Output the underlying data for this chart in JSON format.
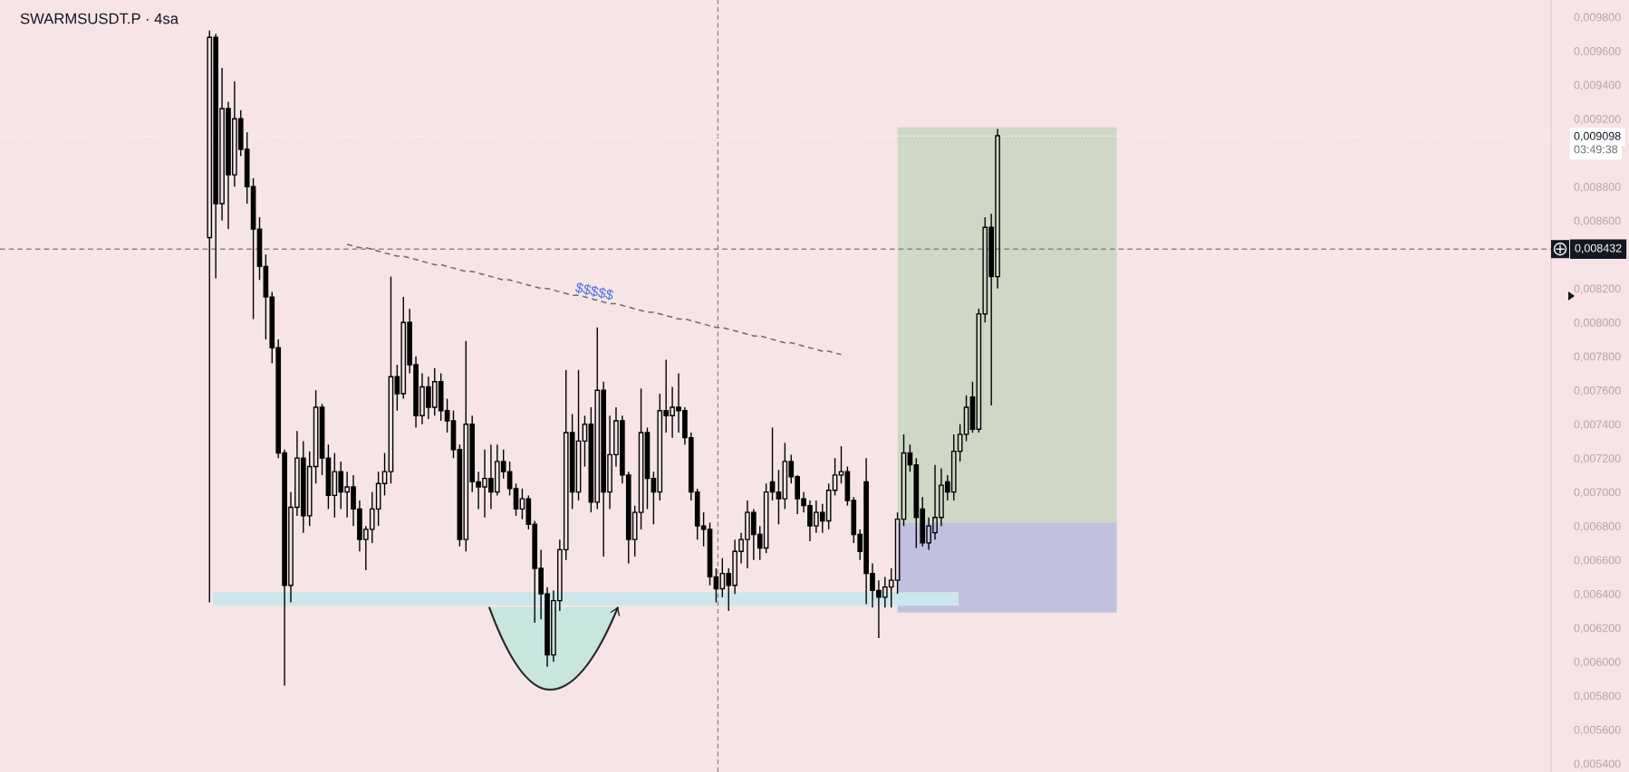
{
  "chart_data": {
    "type": "candlestick",
    "title": "SWARMSUSDT.P · 4sa",
    "categories": [
      null,
      null,
      null,
      null,
      null,
      null,
      null,
      null,
      null,
      null,
      null,
      null,
      null,
      null,
      null,
      null,
      null,
      null,
      null,
      null,
      null,
      null,
      null,
      null,
      null,
      null,
      null,
      null,
      null,
      null,
      null,
      null,
      null,
      null,
      null,
      null,
      null,
      null,
      null,
      null,
      null,
      null,
      null,
      null,
      null,
      null,
      null,
      null,
      null,
      null,
      null,
      null,
      null,
      null,
      null,
      null,
      null,
      null,
      null,
      null,
      null,
      null,
      null,
      null,
      null,
      null,
      null,
      null,
      null,
      null,
      null,
      null,
      null,
      null,
      null,
      null,
      null,
      null,
      null,
      null,
      null,
      null,
      null,
      null,
      null,
      null,
      null,
      null,
      null,
      null,
      null,
      null,
      null,
      null,
      null,
      null,
      null,
      null,
      null,
      null,
      null,
      null,
      null,
      null,
      null,
      null,
      null,
      null,
      null,
      null,
      null,
      null,
      null,
      null,
      null,
      null,
      null,
      null,
      null,
      null,
      null,
      null,
      null,
      null,
      null,
      null,
      null,
      null,
      null,
      null,
      null,
      null,
      null,
      null,
      null,
      null,
      null,
      null,
      null,
      null,
      null,
      null,
      null,
      null,
      null,
      null,
      null,
      null,
      null,
      null,
      null,
      null,
      null,
      null,
      null,
      null,
      null,
      null,
      null,
      null,
      null,
      null,
      null,
      null,
      null,
      null,
      null,
      null,
      null,
      null,
      null,
      null,
      null,
      null,
      null,
      null,
      null,
      null,
      null,
      null,
      null,
      null,
      null,
      null,
      null,
      null,
      null,
      null,
      null,
      null,
      null,
      null,
      null,
      null,
      null,
      null,
      null,
      null,
      null,
      null,
      null,
      null,
      null,
      null,
      null,
      null,
      null,
      null,
      null,
      null,
      null,
      null,
      null,
      null,
      null,
      null,
      null,
      null,
      null,
      null,
      null,
      null,
      null,
      null,
      null,
      null,
      null,
      null,
      null,
      null,
      null,
      null,
      null,
      null,
      null,
      null,
      null,
      null,
      null,
      null,
      null,
      null,
      null,
      null,
      null,
      null,
      null,
      null
    ],
    "ohlc": [
      null,
      null,
      null,
      null,
      null,
      null,
      null,
      null,
      null,
      null,
      null,
      null,
      null,
      null,
      null,
      null,
      null,
      null,
      null,
      null,
      null,
      null,
      null,
      null,
      null,
      null,
      null,
      null,
      null,
      null,
      null,
      null,
      null,
      [
        0.0085,
        0.00972,
        0.00635,
        0.00968
      ],
      [
        0.00968,
        0.0097,
        0.00826,
        0.0087
      ],
      [
        0.0087,
        0.0095,
        0.0086,
        0.00926
      ],
      [
        0.00926,
        0.0093,
        0.00855,
        0.00887
      ],
      [
        0.00887,
        0.00942,
        0.0088,
        0.0092
      ],
      [
        0.0092,
        0.00925,
        0.00898,
        0.00902
      ],
      [
        0.00902,
        0.00912,
        0.0087,
        0.0088
      ],
      [
        0.0088,
        0.00885,
        0.00802,
        0.00855
      ],
      [
        0.00855,
        0.00862,
        0.00825,
        0.00833
      ],
      [
        0.00833,
        0.0084,
        0.0079,
        0.00815
      ],
      [
        0.00815,
        0.00818,
        0.00776,
        0.00785
      ],
      [
        0.00785,
        0.0079,
        0.0072,
        0.00723
      ],
      [
        0.00723,
        0.00725,
        0.00586,
        0.00645
      ],
      [
        0.00645,
        0.007,
        0.00635,
        0.00691
      ],
      [
        0.00691,
        0.00736,
        0.00686,
        0.0072
      ],
      [
        0.0072,
        0.0073,
        0.00676,
        0.00686
      ],
      [
        0.00686,
        0.00724,
        0.0068,
        0.00715
      ],
      [
        0.00715,
        0.0076,
        0.00705,
        0.0075
      ],
      [
        0.0075,
        0.00752,
        0.0071,
        0.0072
      ],
      [
        0.0072,
        0.00728,
        0.0069,
        0.00698
      ],
      [
        0.00698,
        0.00723,
        0.00685,
        0.00712
      ],
      [
        0.00712,
        0.00718,
        0.0069,
        0.007
      ],
      [
        0.007,
        0.00712,
        0.00685,
        0.00703
      ],
      [
        0.00703,
        0.0071,
        0.0068,
        0.0069
      ],
      [
        0.0069,
        0.00695,
        0.00665,
        0.00672
      ],
      [
        0.00672,
        0.0068,
        0.00654,
        0.00678
      ],
      [
        0.00678,
        0.007,
        0.0067,
        0.0069
      ],
      [
        0.0069,
        0.00712,
        0.0068,
        0.00705
      ],
      [
        0.00705,
        0.00723,
        0.00698,
        0.00712
      ],
      [
        0.00712,
        0.00827,
        0.00705,
        0.00768
      ],
      [
        0.00768,
        0.00775,
        0.00748,
        0.00758
      ],
      [
        0.00758,
        0.00815,
        0.00755,
        0.008
      ],
      [
        0.008,
        0.00808,
        0.0077,
        0.00775
      ],
      [
        0.00775,
        0.0078,
        0.00738,
        0.00745
      ],
      [
        0.00745,
        0.0077,
        0.0074,
        0.00762
      ],
      [
        0.00762,
        0.00768,
        0.00743,
        0.0075
      ],
      [
        0.0075,
        0.00773,
        0.00745,
        0.00765
      ],
      [
        0.00765,
        0.0077,
        0.00742,
        0.00748
      ],
      [
        0.00748,
        0.00755,
        0.00735,
        0.00742
      ],
      [
        0.00742,
        0.00748,
        0.0072,
        0.00725
      ],
      [
        0.00725,
        0.00728,
        0.00668,
        0.00672
      ],
      [
        0.00672,
        0.00789,
        0.00665,
        0.0074
      ],
      [
        0.0074,
        0.00745,
        0.007,
        0.00706
      ],
      [
        0.00706,
        0.00712,
        0.0069,
        0.00703
      ],
      [
        0.00703,
        0.00725,
        0.00685,
        0.00708
      ],
      [
        0.00708,
        0.00728,
        0.0069,
        0.007
      ],
      [
        0.007,
        0.00728,
        0.00698,
        0.00718
      ],
      [
        0.00718,
        0.00725,
        0.00708,
        0.00712
      ],
      [
        0.00712,
        0.00718,
        0.00698,
        0.00702
      ],
      [
        0.00702,
        0.00705,
        0.00686,
        0.0069
      ],
      [
        0.0069,
        0.00702,
        0.00684,
        0.00696
      ],
      [
        0.00696,
        0.00698,
        0.00678,
        0.00681
      ],
      [
        0.00681,
        0.00683,
        0.00623,
        0.00655
      ],
      [
        0.00655,
        0.00666,
        0.00625,
        0.0064
      ],
      [
        0.0064,
        0.00644,
        0.00597,
        0.00604
      ],
      [
        0.00604,
        0.00642,
        0.006,
        0.00636
      ],
      [
        0.00636,
        0.00672,
        0.0063,
        0.00666
      ],
      [
        0.00666,
        0.00772,
        0.0066,
        0.00735
      ],
      [
        0.00735,
        0.00746,
        0.0069,
        0.007
      ],
      [
        0.007,
        0.00772,
        0.00695,
        0.0073
      ],
      [
        0.0073,
        0.00745,
        0.00715,
        0.0074
      ],
      [
        0.0074,
        0.0075,
        0.00688,
        0.00694
      ],
      [
        0.00694,
        0.00797,
        0.0069,
        0.0076
      ],
      [
        0.0076,
        0.00765,
        0.00662,
        0.007
      ],
      [
        0.007,
        0.00745,
        0.0069,
        0.00722
      ],
      [
        0.00722,
        0.0075,
        0.00715,
        0.00742
      ],
      [
        0.00742,
        0.00745,
        0.00705,
        0.0071
      ],
      [
        0.0071,
        0.00712,
        0.00658,
        0.00672
      ],
      [
        0.00672,
        0.00692,
        0.00662,
        0.00688
      ],
      [
        0.00688,
        0.00761,
        0.00678,
        0.00735
      ],
      [
        0.00735,
        0.00738,
        0.0069,
        0.00708
      ],
      [
        0.00708,
        0.00712,
        0.00681,
        0.007
      ],
      [
        0.007,
        0.00758,
        0.00695,
        0.00748
      ],
      [
        0.00748,
        0.00778,
        0.00735,
        0.00745
      ],
      [
        0.00745,
        0.00762,
        0.00732,
        0.0075
      ],
      [
        0.0075,
        0.0077,
        0.00735,
        0.00748
      ],
      [
        0.00748,
        0.0075,
        0.00728,
        0.00732
      ],
      [
        0.00732,
        0.00735,
        0.00695,
        0.007
      ],
      [
        0.007,
        0.00702,
        0.00672,
        0.0068
      ],
      [
        0.0068,
        0.00688,
        0.00668,
        0.00678
      ],
      [
        0.00678,
        0.00682,
        0.00645,
        0.0065
      ],
      [
        0.0065,
        0.00655,
        0.00635,
        0.00643
      ],
      [
        0.00643,
        0.00661,
        0.00638,
        0.00652
      ],
      [
        0.00652,
        0.00655,
        0.0063,
        0.00645
      ],
      [
        0.00645,
        0.00672,
        0.0064,
        0.00665
      ],
      [
        0.00665,
        0.00676,
        0.00658,
        0.00672
      ],
      [
        0.00672,
        0.00695,
        0.00655,
        0.00688
      ],
      [
        0.00688,
        0.0069,
        0.0066,
        0.00675
      ],
      [
        0.00675,
        0.0068,
        0.0066,
        0.00667
      ],
      [
        0.00667,
        0.00705,
        0.00664,
        0.007
      ],
      [
        0.00706,
        0.00738,
        0.00695,
        0.007
      ],
      [
        0.007,
        0.00713,
        0.00681,
        0.00696
      ],
      [
        0.00696,
        0.00729,
        0.0069,
        0.00718
      ],
      [
        0.00718,
        0.00722,
        0.00705,
        0.00709
      ],
      [
        0.00709,
        0.0071,
        0.00687,
        0.00696
      ],
      [
        0.00696,
        0.007,
        0.00688,
        0.00692
      ],
      [
        0.00692,
        0.00695,
        0.00671,
        0.0068
      ],
      [
        0.0068,
        0.00695,
        0.00676,
        0.00688
      ],
      [
        0.00688,
        0.00693,
        0.00676,
        0.00683
      ],
      [
        0.00683,
        0.00705,
        0.00678,
        0.00701
      ],
      [
        0.00701,
        0.0072,
        0.00698,
        0.0071
      ],
      [
        0.0071,
        0.00727,
        0.00705,
        0.00712
      ],
      [
        0.00712,
        0.00715,
        0.00692,
        0.00695
      ],
      [
        0.00695,
        0.00697,
        0.0067,
        0.00675
      ],
      [
        0.00675,
        0.00678,
        0.0066,
        0.00665
      ],
      [
        0.00706,
        0.0072,
        0.00634,
        0.00652
      ],
      [
        0.00652,
        0.00658,
        0.00632,
        0.00642
      ],
      [
        0.00642,
        0.00648,
        0.00614,
        0.00638
      ],
      [
        0.00638,
        0.0065,
        0.00632,
        0.00644
      ],
      [
        0.00644,
        0.00655,
        0.00632,
        0.00648
      ],
      [
        0.00648,
        0.00688,
        0.0064,
        0.00684
      ],
      [
        0.00684,
        0.00734,
        0.0068,
        0.00723
      ],
      [
        0.00723,
        0.00728,
        0.00712,
        0.00716
      ],
      [
        0.00716,
        0.0072,
        0.00667,
        0.00685
      ],
      [
        0.0069,
        0.00697,
        0.00668,
        0.0067
      ],
      [
        0.0067,
        0.00685,
        0.00666,
        0.0068
      ],
      [
        0.00676,
        0.00716,
        0.00672,
        0.00685
      ],
      [
        0.00685,
        0.00714,
        0.0068,
        0.00704
      ],
      [
        0.00706,
        0.0071,
        0.00695,
        0.007
      ],
      [
        0.007,
        0.00734,
        0.00695,
        0.00724
      ],
      [
        0.00724,
        0.0074,
        0.00718,
        0.00734
      ],
      [
        0.00734,
        0.00757,
        0.0073,
        0.0075
      ],
      [
        0.00756,
        0.00765,
        0.00735,
        0.00737
      ],
      [
        0.00737,
        0.00808,
        0.00735,
        0.00805
      ],
      [
        0.00805,
        0.00862,
        0.008,
        0.00856
      ],
      [
        0.00856,
        0.00864,
        0.00751,
        0.00827
      ],
      [
        0.00827,
        0.00914,
        0.0082,
        0.0091
      ],
      null,
      null,
      null,
      null,
      null,
      null,
      null,
      null,
      null,
      null,
      null,
      null,
      null,
      null,
      null,
      null,
      null,
      null,
      null,
      null,
      null,
      null,
      null,
      null,
      null,
      null,
      null,
      null,
      null,
      null,
      null,
      null,
      null,
      null,
      null,
      null,
      null,
      null,
      null,
      null,
      null,
      null,
      null,
      null,
      null,
      null,
      null,
      null,
      null,
      null,
      null,
      null,
      null,
      null,
      null,
      null,
      null,
      null,
      null,
      null,
      null,
      null,
      null,
      null,
      null,
      null,
      null,
      null,
      null,
      null,
      null,
      null,
      null,
      null,
      null,
      null,
      null,
      null,
      null,
      null,
      null,
      null,
      null,
      null,
      null,
      null,
      null,
      null
    ],
    "color": "#000000",
    "series": [
      {
        "type": "line",
        "color": "#6f6b6c",
        "line_style": "dashed",
        "values": [
          null,
          null,
          null,
          null,
          null,
          null,
          null,
          null,
          null,
          null,
          null,
          null,
          null,
          null,
          null,
          null,
          null,
          null,
          null,
          null,
          null,
          null,
          null,
          null,
          null,
          null,
          null,
          null,
          null,
          null,
          null,
          null,
          null,
          null,
          null,
          null,
          null,
          null,
          null,
          null,
          null,
          null,
          null,
          null,
          null,
          null,
          null,
          null,
          null,
          null,
          null,
          null,
          null,
          null,
          null,
          0.00846,
          0.00845,
          0.00844,
          0.00844,
          0.00843,
          0.00842,
          0.00841,
          0.0084,
          0.00839,
          0.00839,
          0.00838,
          0.00837,
          0.00836,
          0.00835,
          0.00834,
          0.00834,
          0.00833,
          0.00832,
          0.00831,
          0.0083,
          0.0083,
          0.00829,
          0.00828,
          0.00827,
          0.00826,
          0.00825,
          0.00825,
          0.00824,
          0.00823,
          0.00822,
          0.00821,
          0.0082,
          0.0082,
          0.00819,
          0.00818,
          0.00817,
          0.00816,
          0.00816,
          0.00815,
          0.00814,
          0.00813,
          0.00812,
          0.00811,
          0.00811,
          0.0081,
          0.00809,
          0.00808,
          0.00807,
          0.00806,
          0.00806,
          0.00805,
          0.00804,
          0.00803,
          0.00802,
          0.00802,
          0.00801,
          0.008,
          0.00799,
          0.00798,
          0.00797,
          0.00797,
          0.00796,
          0.00795,
          0.00794,
          0.00793,
          0.00792,
          0.00792,
          0.00791,
          0.0079,
          0.00789,
          0.00788,
          0.00788,
          0.00787,
          0.00786,
          0.00785,
          0.00784,
          0.00783,
          0.00783,
          0.00782,
          0.00781,
          null,
          null,
          null,
          null,
          null,
          null,
          null,
          null,
          null,
          null,
          null,
          null,
          null,
          null,
          null,
          null,
          null,
          null,
          null,
          null,
          null,
          null,
          null,
          null,
          null,
          null,
          null,
          null,
          null,
          null,
          null,
          null,
          null,
          null,
          null,
          null,
          null,
          null,
          null,
          null,
          null,
          null,
          null,
          null,
          null,
          null,
          null,
          null,
          null,
          null,
          null,
          null,
          null,
          null,
          null,
          null,
          null,
          null,
          null,
          null,
          null,
          null,
          null,
          null,
          null,
          null,
          null,
          null,
          null,
          null,
          null,
          null,
          null,
          null,
          null,
          null,
          null,
          null,
          null,
          null,
          null,
          null,
          null,
          null,
          null,
          null,
          null,
          null,
          null,
          null,
          null,
          null,
          null,
          null,
          null,
          null,
          null,
          null,
          null,
          null,
          null,
          null,
          null,
          null,
          null,
          null,
          null,
          null,
          null,
          null,
          null,
          null,
          null
        ]
      }
    ],
    "ylim": [
      0.00535,
      0.0099
    ],
    "yticks": [
      {
        "value": 0.0098,
        "label": "0,009800"
      },
      {
        "value": 0.0096,
        "label": "0,009600"
      },
      {
        "value": 0.0094,
        "label": "0,009400"
      },
      {
        "value": 0.0092,
        "label": "0,009200"
      },
      {
        "value": 0.0088,
        "label": "0,008800"
      },
      {
        "value": 0.0086,
        "label": "0,008600"
      },
      {
        "value": 0.0082,
        "label": "0,008200"
      },
      {
        "value": 0.008,
        "label": "0,008000"
      },
      {
        "value": 0.0078,
        "label": "0,007800"
      },
      {
        "value": 0.0076,
        "label": "0,007600"
      },
      {
        "value": 0.0074,
        "label": "0,007400"
      },
      {
        "value": 0.0072,
        "label": "0,007200"
      },
      {
        "value": 0.007,
        "label": "0,007000"
      },
      {
        "value": 0.0068,
        "label": "0,006800"
      },
      {
        "value": 0.0066,
        "label": "0,006600"
      },
      {
        "value": 0.0064,
        "label": "0,006400"
      },
      {
        "value": 0.0062,
        "label": "0,006200"
      },
      {
        "value": 0.006,
        "label": "0,006000"
      },
      {
        "value": 0.0058,
        "label": "0,005800"
      },
      {
        "value": 0.0056,
        "label": "0,005600"
      },
      {
        "value": 0.0054,
        "label": "0,005400"
      }
    ],
    "tick_labels": "y",
    "ref_lines": [
      {
        "axis": "y",
        "value": 0.008432,
        "label": "0,008432",
        "color": "#8a8587",
        "line_style": "dashed"
      },
      {
        "axis": "y",
        "value": 0.009098,
        "label": "0,009098",
        "color": "#ffffff",
        "line_style": "dotted"
      }
    ],
    "bands": [
      {
        "axis": "y",
        "from": 0.00633,
        "to": 0.00641,
        "color": "#cce7eb"
      },
      {
        "axis": "y",
        "from": 0.00682,
        "to": 0.00915,
        "color": "#cfd8c4"
      },
      {
        "axis": "y",
        "from": 0.00629,
        "to": 0.00682,
        "color": "#c1c0de"
      }
    ],
    "annotations": [
      "$$$$$",
      "03:49:38"
    ]
  }
}
